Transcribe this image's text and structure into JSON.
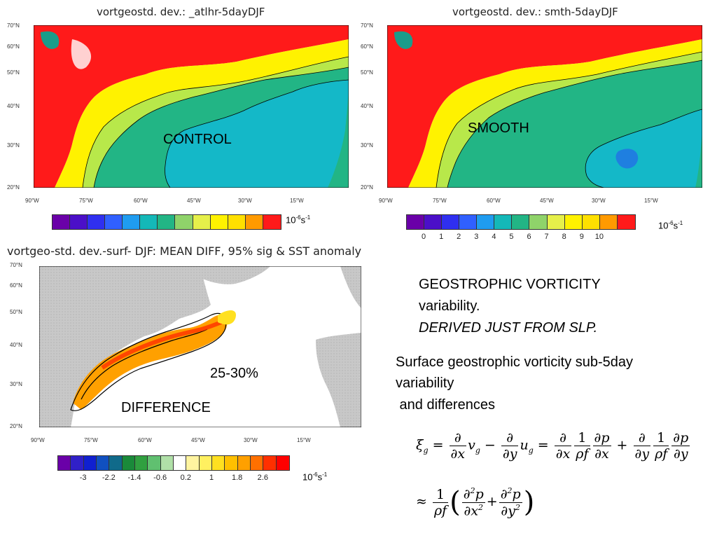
{
  "panels": {
    "control": {
      "title": "vortgeostd. dev.:  _atlhr-5dayDJF",
      "overlay_label": "CONTROL",
      "lat_labels": [
        "70°N",
        "60°N",
        "50°N",
        "40°N",
        "30°N",
        "20°N"
      ],
      "lon_labels": [
        "90°W",
        "75°W",
        "60°W",
        "45°W",
        "30°W",
        "15°W"
      ],
      "colorbar_colors": [
        "#6a00a8",
        "#4b0fc8",
        "#2f2ff0",
        "#3060ff",
        "#1f9cf0",
        "#14b8b8",
        "#22b585",
        "#8fd36a",
        "#e6f04a",
        "#fff200",
        "#ffe000",
        "#ff9a00",
        "#ff1a1a"
      ],
      "unit": "10-6s-1"
    },
    "smooth": {
      "title": "vortgeostd. dev.:  smth-5dayDJF",
      "overlay_label": "SMOOTH",
      "lat_labels": [
        "70°N",
        "60°N",
        "50°N",
        "40°N",
        "30°N",
        "20°N"
      ],
      "lon_labels": [
        "90°W",
        "75°W",
        "60°W",
        "45°W",
        "30°W",
        "15°W"
      ],
      "colorbar_colors": [
        "#6a00a8",
        "#4b0fc8",
        "#2f2ff0",
        "#3060ff",
        "#1f9cf0",
        "#14b8b8",
        "#22b585",
        "#8fd36a",
        "#e6f04a",
        "#fff200",
        "#ffe000",
        "#ff9a00",
        "#ff1a1a"
      ],
      "colorbar_ticks": [
        "0",
        "1",
        "2",
        "3",
        "4",
        "5",
        "6",
        "7",
        "8",
        "9",
        "10"
      ],
      "unit": "10-6s-1"
    },
    "difference": {
      "title": "vortgeo-std. dev.-surf- DJF: MEAN DIFF, 95% sig & SST anomaly",
      "overlay_label": "DIFFERENCE",
      "percent_label": "25-30%",
      "lat_labels": [
        "70°N",
        "60°N",
        "50°N",
        "40°N",
        "30°N",
        "20°N"
      ],
      "lon_labels": [
        "90°W",
        "75°W",
        "60°W",
        "45°W",
        "30°W",
        "15°W"
      ],
      "colorbar_colors": [
        "#6a00a8",
        "#3020c8",
        "#1020d0",
        "#1050c0",
        "#106a8a",
        "#1a8a3a",
        "#30a040",
        "#60c070",
        "#b0e0a8",
        "#ffffff",
        "#fff4a0",
        "#fff060",
        "#ffe020",
        "#ffc000",
        "#ffa000",
        "#ff7000",
        "#ff3000",
        "#ff0000"
      ],
      "colorbar_ticks": [
        "-3",
        "-2.2",
        "-1.4",
        "-0.6",
        "0.2",
        "1",
        "1.8",
        "2.6"
      ],
      "unit": "10-6s-1"
    }
  },
  "text": {
    "heading_line1": "GEOSTROPHIC VORTICITY",
    "heading_line2": "variability.",
    "heading_line3": "DERIVED JUST FROM SLP.",
    "desc_line1": "Surface geostrophic vorticity sub-5day",
    "desc_line2": "variability",
    "desc_line3": " and differences"
  },
  "colors": {
    "land_gray": "#c8c8c8",
    "grid_pink": "#f4b8b8",
    "contour": "#000000"
  }
}
